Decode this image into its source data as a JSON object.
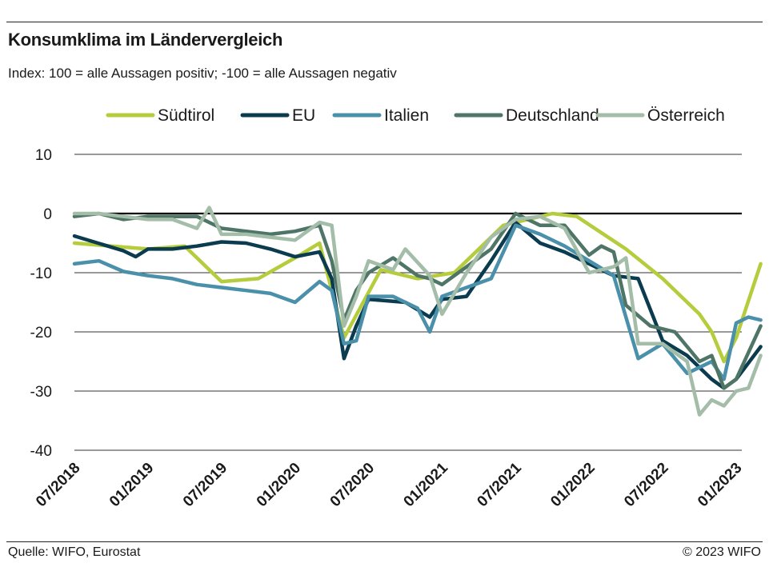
{
  "header": {
    "title": "Konsumklima im Ländervergleich",
    "subtitle": "Index: 100 = alle Aussagen positiv; -100 =  alle Aussagen negativ"
  },
  "footer": {
    "source": "Quelle: WIFO, Eurostat",
    "copyright": "© 2023 WIFO"
  },
  "chart_data": {
    "type": "line",
    "x_start": "2018-07",
    "x_end": "2023-01",
    "x_tick_labels": [
      "07/2018",
      "01/2019",
      "07/2019",
      "01/2020",
      "07/2020",
      "01/2021",
      "07/2021",
      "01/2022",
      "07/2022",
      "01/2023"
    ],
    "y_ticks": [
      10,
      0,
      -10,
      -20,
      -30,
      -40
    ],
    "ylim": [
      -40,
      10
    ],
    "grid": "horizontal",
    "zero_line": true,
    "legend_position": "top",
    "series": [
      {
        "name": "Südtirol",
        "color": "#b5cc3c",
        "points": [
          [
            "2018-07",
            -5
          ],
          [
            "2019-01",
            -6
          ],
          [
            "2019-04",
            -5.5
          ],
          [
            "2019-07",
            -11.5
          ],
          [
            "2019-10",
            -11
          ],
          [
            "2020-01",
            -7.5
          ],
          [
            "2020-03",
            -5
          ],
          [
            "2020-05",
            -21
          ],
          [
            "2020-08",
            -9.5
          ],
          [
            "2020-11",
            -11
          ],
          [
            "2021-02",
            -10
          ],
          [
            "2021-04",
            -6
          ],
          [
            "2021-06",
            -2
          ],
          [
            "2021-08",
            -1
          ],
          [
            "2021-10",
            0
          ],
          [
            "2021-12",
            -0.5
          ],
          [
            "2022-04",
            -6
          ],
          [
            "2022-07",
            -11
          ],
          [
            "2022-10",
            -17
          ],
          [
            "2022-11",
            -20
          ],
          [
            "2022-12",
            -25
          ],
          [
            "2023-01",
            -21
          ],
          [
            "2023-03",
            -8.5
          ]
        ]
      },
      {
        "name": "EU",
        "color": "#0b3b4f",
        "points": [
          [
            "2018-07",
            -3.8
          ],
          [
            "2018-11",
            -6.3
          ],
          [
            "2018-12",
            -7.3
          ],
          [
            "2019-01",
            -6
          ],
          [
            "2019-03",
            -6
          ],
          [
            "2019-05",
            -5.5
          ],
          [
            "2019-07",
            -4.8
          ],
          [
            "2019-09",
            -5
          ],
          [
            "2019-11",
            -6
          ],
          [
            "2020-01",
            -7.3
          ],
          [
            "2020-03",
            -6.5
          ],
          [
            "2020-04",
            -11
          ],
          [
            "2020-05",
            -24.5
          ],
          [
            "2020-06",
            -19
          ],
          [
            "2020-07",
            -14.5
          ],
          [
            "2020-10",
            -15
          ],
          [
            "2020-12",
            -17.5
          ],
          [
            "2021-01",
            -14.5
          ],
          [
            "2021-03",
            -14
          ],
          [
            "2021-05",
            -8
          ],
          [
            "2021-07",
            -1.5
          ],
          [
            "2021-09",
            -5
          ],
          [
            "2021-11",
            -6.5
          ],
          [
            "2022-01",
            -8.5
          ],
          [
            "2022-03",
            -10.5
          ],
          [
            "2022-05",
            -11
          ],
          [
            "2022-07",
            -21.5
          ],
          [
            "2022-09",
            -24
          ],
          [
            "2022-11",
            -28
          ],
          [
            "2022-12",
            -29.5
          ],
          [
            "2023-01",
            -28
          ],
          [
            "2023-03",
            -22.5
          ]
        ]
      },
      {
        "name": "Italien",
        "color": "#4a90aa",
        "points": [
          [
            "2018-07",
            -8.5
          ],
          [
            "2018-09",
            -8
          ],
          [
            "2018-11",
            -9.8
          ],
          [
            "2019-01",
            -10.5
          ],
          [
            "2019-03",
            -11
          ],
          [
            "2019-05",
            -12
          ],
          [
            "2019-07",
            -12.5
          ],
          [
            "2019-09",
            -13
          ],
          [
            "2019-11",
            -13.5
          ],
          [
            "2020-01",
            -15
          ],
          [
            "2020-03",
            -11.5
          ],
          [
            "2020-04",
            -13
          ],
          [
            "2020-05",
            -22
          ],
          [
            "2020-06",
            -21.5
          ],
          [
            "2020-07",
            -14
          ],
          [
            "2020-09",
            -14
          ],
          [
            "2020-11",
            -16
          ],
          [
            "2020-12",
            -20
          ],
          [
            "2021-01",
            -14
          ],
          [
            "2021-03",
            -12.5
          ],
          [
            "2021-05",
            -11
          ],
          [
            "2021-07",
            -2
          ],
          [
            "2021-09",
            -3.5
          ],
          [
            "2021-11",
            -5.5
          ],
          [
            "2022-01",
            -8
          ],
          [
            "2022-03",
            -10.5
          ],
          [
            "2022-05",
            -24.5
          ],
          [
            "2022-07",
            -22
          ],
          [
            "2022-09",
            -27
          ],
          [
            "2022-11",
            -25
          ],
          [
            "2022-12",
            -28
          ],
          [
            "2023-01",
            -18.5
          ],
          [
            "2023-02",
            -17.5
          ],
          [
            "2023-03",
            -18
          ]
        ]
      },
      {
        "name": "Deutschland",
        "color": "#4e7566",
        "points": [
          [
            "2018-07",
            -0.5
          ],
          [
            "2018-09",
            0
          ],
          [
            "2018-11",
            -1
          ],
          [
            "2019-01",
            -0.5
          ],
          [
            "2019-03",
            -0.5
          ],
          [
            "2019-05",
            -0.5
          ],
          [
            "2019-07",
            -2.5
          ],
          [
            "2019-09",
            -3
          ],
          [
            "2019-11",
            -3.5
          ],
          [
            "2020-01",
            -3
          ],
          [
            "2020-03",
            -2
          ],
          [
            "2020-04",
            -8
          ],
          [
            "2020-05",
            -18
          ],
          [
            "2020-06",
            -13
          ],
          [
            "2020-07",
            -10
          ],
          [
            "2020-09",
            -7.5
          ],
          [
            "2020-11",
            -10.5
          ],
          [
            "2020-12",
            -11
          ],
          [
            "2021-01",
            -12
          ],
          [
            "2021-03",
            -9
          ],
          [
            "2021-05",
            -6
          ],
          [
            "2021-07",
            0
          ],
          [
            "2021-09",
            -2
          ],
          [
            "2021-11",
            -2
          ],
          [
            "2022-01",
            -7
          ],
          [
            "2022-02",
            -5.5
          ],
          [
            "2022-03",
            -6.5
          ],
          [
            "2022-04",
            -15.5
          ],
          [
            "2022-06",
            -19
          ],
          [
            "2022-08",
            -20
          ],
          [
            "2022-10",
            -25
          ],
          [
            "2022-11",
            -24
          ],
          [
            "2022-12",
            -29.5
          ],
          [
            "2023-01",
            -28
          ],
          [
            "2023-03",
            -19
          ]
        ]
      },
      {
        "name": "Österreich",
        "color": "#a3bda9",
        "points": [
          [
            "2018-07",
            0
          ],
          [
            "2018-09",
            0
          ],
          [
            "2018-11",
            -0.5
          ],
          [
            "2019-01",
            -1
          ],
          [
            "2019-03",
            -1
          ],
          [
            "2019-05",
            -2.5
          ],
          [
            "2019-06",
            1
          ],
          [
            "2019-07",
            -3.5
          ],
          [
            "2019-09",
            -3.5
          ],
          [
            "2019-11",
            -4
          ],
          [
            "2020-01",
            -4.5
          ],
          [
            "2020-03",
            -1.5
          ],
          [
            "2020-04",
            -2
          ],
          [
            "2020-05",
            -19
          ],
          [
            "2020-06",
            -14
          ],
          [
            "2020-07",
            -8
          ],
          [
            "2020-09",
            -9.5
          ],
          [
            "2020-10",
            -6
          ],
          [
            "2020-12",
            -10.5
          ],
          [
            "2021-01",
            -17
          ],
          [
            "2021-03",
            -10
          ],
          [
            "2021-05",
            -4
          ],
          [
            "2021-07",
            -1
          ],
          [
            "2021-09",
            -0.5
          ],
          [
            "2021-11",
            -2.5
          ],
          [
            "2022-01",
            -10
          ],
          [
            "2022-03",
            -9
          ],
          [
            "2022-04",
            -7.5
          ],
          [
            "2022-05",
            -22
          ],
          [
            "2022-07",
            -22
          ],
          [
            "2022-09",
            -25
          ],
          [
            "2022-10",
            -34
          ],
          [
            "2022-11",
            -31.5
          ],
          [
            "2022-12",
            -32.5
          ],
          [
            "2023-01",
            -30
          ],
          [
            "2023-02",
            -29.5
          ],
          [
            "2023-03",
            -24
          ]
        ]
      }
    ]
  }
}
